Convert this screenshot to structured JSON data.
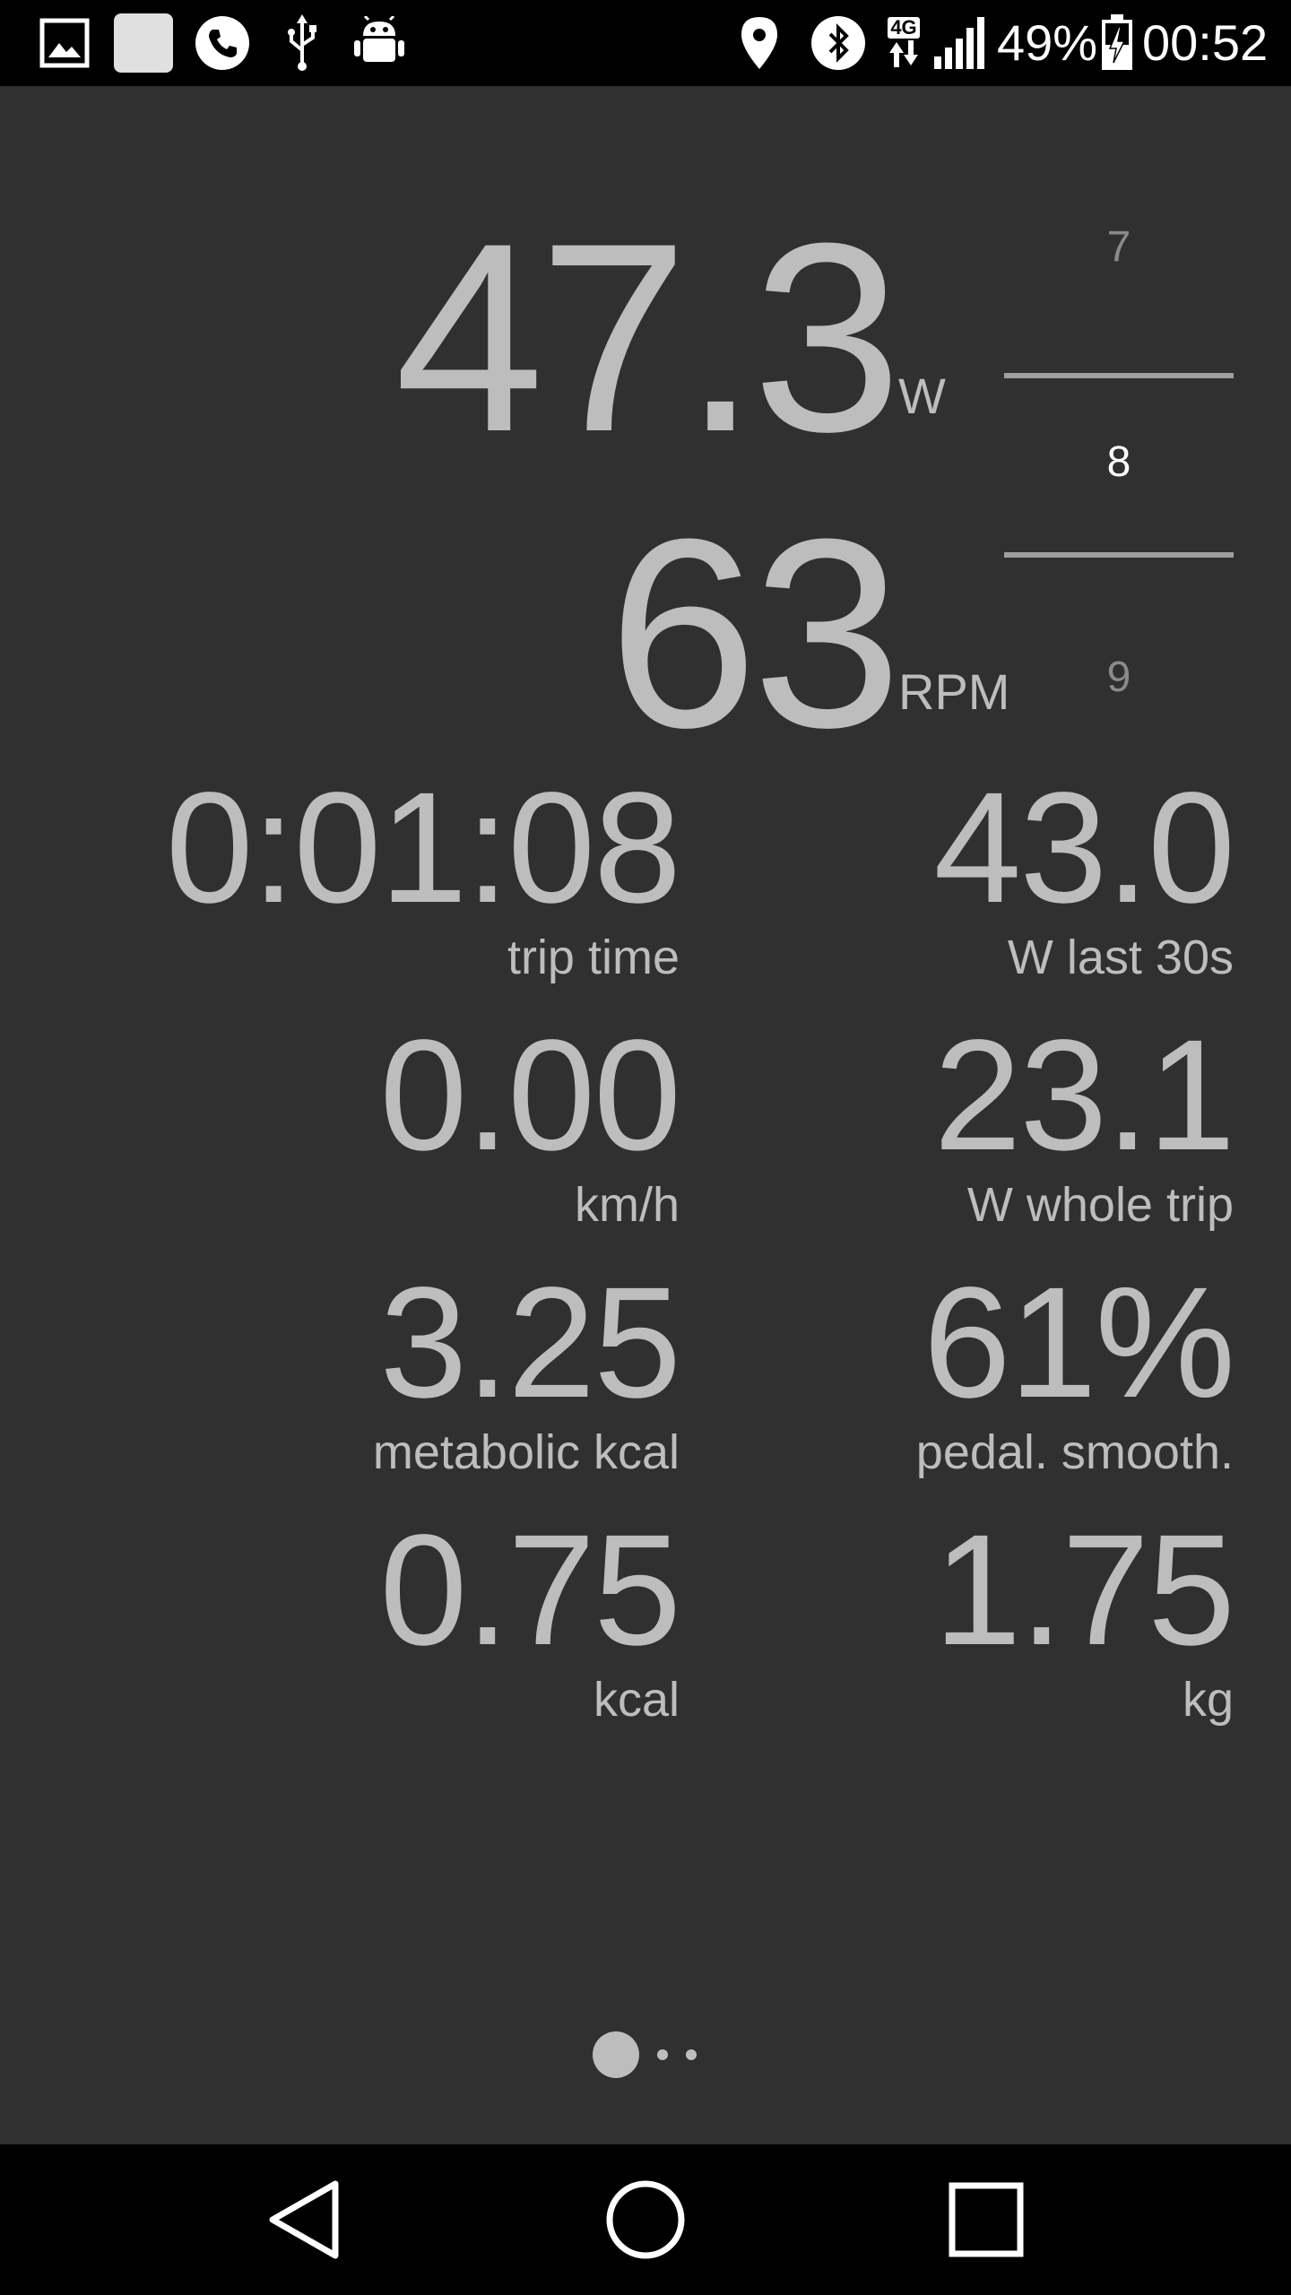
{
  "status_bar": {
    "left_icons": [
      "gallery-icon",
      "blank-notification-icon",
      "phone-icon",
      "usb-icon",
      "android-debug-icon"
    ],
    "right_icons": [
      "location-icon",
      "bluetooth-icon",
      "network-4g-icon",
      "signal-icon",
      "battery-charging-icon"
    ],
    "network_label": "4G",
    "battery_percent": "49%",
    "time": "00:52"
  },
  "primary": {
    "power_value": "47.3",
    "power_unit": "W",
    "cadence_value": "63",
    "cadence_unit": "RPM"
  },
  "gear": {
    "previous": "7",
    "current": "8",
    "next": "9"
  },
  "stats": [
    {
      "value": "0:01:08",
      "label": "trip time"
    },
    {
      "value": "43.0",
      "label": "W last 30s"
    },
    {
      "value": "0.00",
      "label": "km/h"
    },
    {
      "value": "23.1",
      "label": "W whole trip"
    },
    {
      "value": "3.25",
      "label": "metabolic kcal"
    },
    {
      "value": "61%",
      "label": "pedal. smooth."
    },
    {
      "value": "0.75",
      "label": "kcal"
    },
    {
      "value": "1.75",
      "label": "kg"
    }
  ],
  "pager": {
    "pages": 3,
    "current": 1
  },
  "navigation": [
    "back-icon",
    "home-icon",
    "recents-icon"
  ]
}
